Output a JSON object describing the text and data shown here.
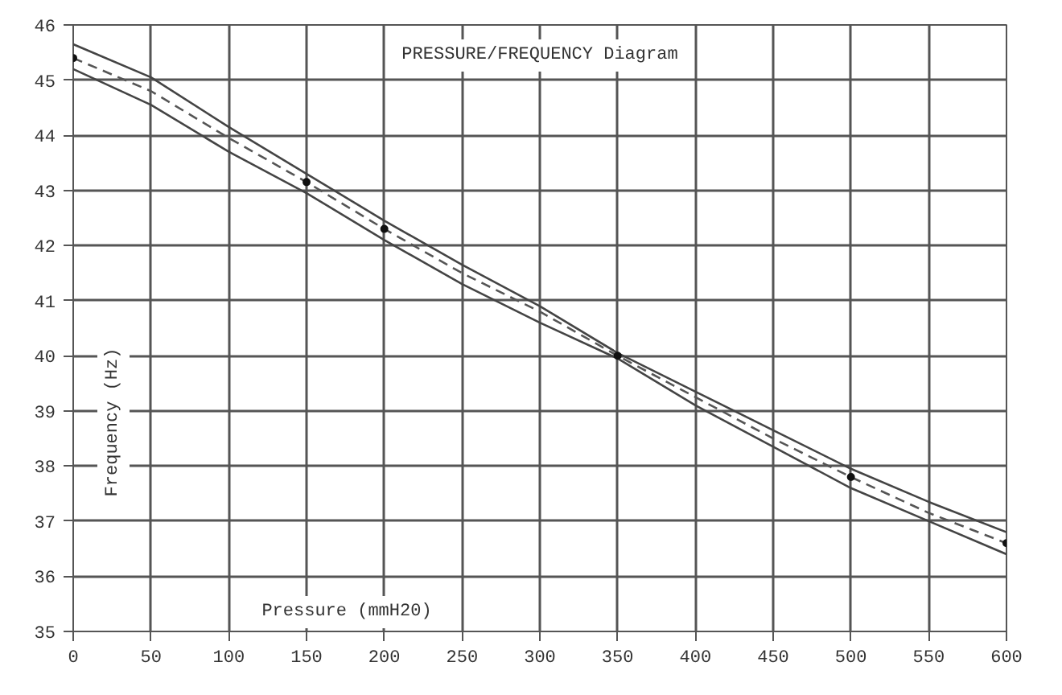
{
  "chart_data": {
    "type": "line",
    "title": "PRESSURE/FREQUENCY Diagram",
    "xlabel": "Pressure (mmH20)",
    "ylabel": "Frequency (Hz)",
    "x": [
      0,
      50,
      100,
      150,
      200,
      250,
      300,
      350,
      400,
      450,
      500,
      550,
      600
    ],
    "series": [
      {
        "color": "#444444",
        "line_style": "solid",
        "values": [
          45.65,
          45.05,
          44.15,
          43.3,
          42.45,
          41.65,
          40.9,
          40.05,
          39.35,
          38.65,
          37.95,
          37.35,
          36.8
        ]
      },
      {
        "color": "#555555",
        "line_style": "dashed",
        "values": [
          45.4,
          44.8,
          43.95,
          43.15,
          42.3,
          41.5,
          40.8,
          40.0,
          39.25,
          38.5,
          37.8,
          37.15,
          36.6
        ]
      },
      {
        "color": "#444444",
        "line_style": "solid",
        "values": [
          45.2,
          44.55,
          43.7,
          42.95,
          42.1,
          41.3,
          40.6,
          39.95,
          39.1,
          38.35,
          37.6,
          37.0,
          36.4
        ]
      },
      {
        "type": "scatter",
        "marker": "circle",
        "color": "#111111",
        "x": [
          0,
          150,
          200,
          350,
          500,
          600
        ],
        "values": [
          45.4,
          43.15,
          42.3,
          40.0,
          37.8,
          36.6
        ]
      }
    ],
    "xlim": [
      0,
      600
    ],
    "ylim": [
      35,
      46
    ],
    "xticks": [
      0,
      50,
      100,
      150,
      200,
      250,
      300,
      350,
      400,
      450,
      500,
      550,
      600
    ],
    "yticks": [
      35,
      36,
      37,
      38,
      39,
      40,
      41,
      42,
      43,
      44,
      45,
      46
    ],
    "grid": true,
    "marker": "none"
  }
}
